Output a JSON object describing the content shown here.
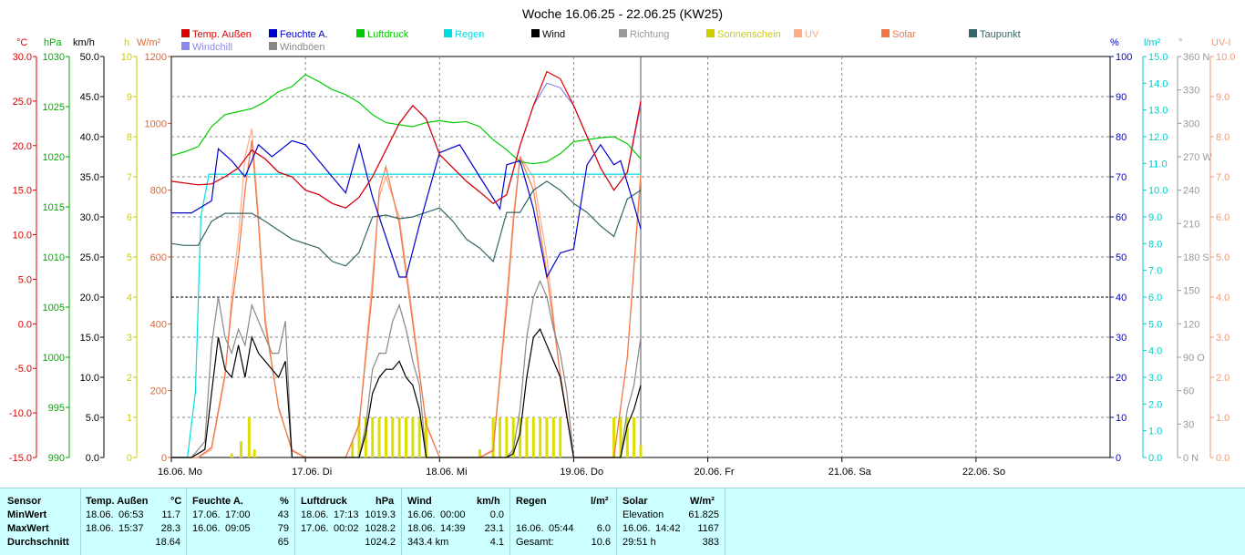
{
  "chart_data": {
    "type": "line",
    "title": "Woche 16.06.25 - 22.06.25 (KW25)",
    "x_labels": [
      "16.06. Mo",
      "17.06. Di",
      "18.06. Mi",
      "19.06. Do",
      "20.06. Fr",
      "21.06. Sa",
      "22.06. So"
    ],
    "legend": [
      {
        "name": "Temp. Außen",
        "color": "#dd0000"
      },
      {
        "name": "Feuchte A.",
        "color": "#0000cc"
      },
      {
        "name": "Luftdruck",
        "color": "#00cc00"
      },
      {
        "name": "Regen",
        "color": "#00dddd"
      },
      {
        "name": "Wind",
        "color": "#000000"
      },
      {
        "name": "Richtung",
        "color": "#999999"
      },
      {
        "name": "Sonnenschein",
        "color": "#cccc00"
      },
      {
        "name": "UV",
        "color": "#ffaa88"
      },
      {
        "name": "Solar",
        "color": "#ee7744"
      },
      {
        "name": "Taupunkt",
        "color": "#336666"
      },
      {
        "name": "Windchill",
        "color": "#8888ee"
      },
      {
        "name": "Windböen",
        "color": "#888888"
      }
    ],
    "axes": {
      "temp": {
        "unit": "°C",
        "color": "#dd0000",
        "ticks": [
          "30.0",
          "25.0",
          "20.0",
          "15.0",
          "10.0",
          "5.0",
          "0.0",
          "-5.0",
          "-10.0",
          "-15.0"
        ]
      },
      "pressure": {
        "unit": "hPa",
        "color": "#00aa00",
        "ticks": [
          "1030",
          "1025",
          "1020",
          "1015",
          "1010",
          "1005",
          "1000",
          "995",
          "990"
        ]
      },
      "wind": {
        "unit": "km/h",
        "color": "#000000",
        "ticks": [
          "50.0",
          "45.0",
          "40.0",
          "35.0",
          "30.0",
          "25.0",
          "20.0",
          "15.0",
          "10.0",
          "5.0",
          "0.0"
        ]
      },
      "sun": {
        "unit": "h",
        "color": "#cccc00",
        "ticks": [
          "10",
          "9",
          "8",
          "7",
          "6",
          "5",
          "4",
          "3",
          "2",
          "1",
          "0"
        ]
      },
      "solar": {
        "unit": "W/m²",
        "color": "#dd6633",
        "ticks": [
          "1200",
          "1000",
          "800",
          "600",
          "400",
          "200",
          "0"
        ]
      },
      "humidity": {
        "unit": "%",
        "color": "#0000cc",
        "ticks": [
          "100",
          "90",
          "80",
          "70",
          "60",
          "50",
          "40",
          "30",
          "20",
          "10",
          "0"
        ]
      },
      "rain": {
        "unit": "l/m²",
        "color": "#00cccc",
        "ticks": [
          "15.0",
          "14.0",
          "13.0",
          "12.0",
          "11.0",
          "10.0",
          "9.0",
          "8.0",
          "7.0",
          "6.0",
          "5.0",
          "4.0",
          "3.0",
          "2.0",
          "1.0",
          "0.0"
        ]
      },
      "direction": {
        "unit": "°",
        "color": "#999999",
        "ticks": [
          "360 N",
          "330",
          "300",
          "270 W",
          "240",
          "210",
          "180 S",
          "150",
          "120",
          "90 O",
          "60",
          "30",
          "0 N"
        ]
      },
      "uv": {
        "unit": "UV-I",
        "color": "#ee9977",
        "ticks": [
          "10.0",
          "9.0",
          "8.0",
          "7.0",
          "6.0",
          "5.0",
          "4.0",
          "3.0",
          "2.0",
          "1.0",
          "0.0"
        ]
      }
    },
    "series": {
      "temp": {
        "x": [
          0,
          0.1,
          0.2,
          0.3,
          0.4,
          0.5,
          0.6,
          0.7,
          0.8,
          0.9,
          1,
          1.1,
          1.2,
          1.3,
          1.4,
          1.5,
          1.6,
          1.7,
          1.8,
          1.9,
          2,
          2.1,
          2.2,
          2.3,
          2.4,
          2.5,
          2.6,
          2.7,
          2.8,
          2.9,
          3,
          3.1,
          3.2,
          3.3,
          3.4,
          3.5
        ],
        "y": [
          16,
          15.8,
          15.6,
          15.7,
          16.5,
          17.5,
          19.5,
          18.5,
          17,
          16.5,
          15,
          14.5,
          13.5,
          13,
          14.2,
          16.5,
          19.5,
          22.5,
          24.5,
          23,
          19,
          17.5,
          16,
          14.8,
          13.5,
          14.5,
          20,
          24.5,
          28.3,
          27.5,
          24.5,
          21,
          17.5,
          15,
          17,
          25
        ]
      },
      "windchill": {
        "x": [
          0,
          0.1,
          0.2,
          0.3,
          0.4,
          0.5,
          0.6,
          0.7,
          0.8,
          0.9,
          1,
          1.1,
          1.2,
          1.3,
          1.4,
          1.5,
          1.6,
          1.7,
          1.8,
          1.9,
          2,
          2.1,
          2.2,
          2.3,
          2.4,
          2.5,
          2.6,
          2.7,
          2.8,
          2.9,
          3,
          3.1,
          3.2,
          3.3,
          3.4,
          3.5
        ],
        "y": [
          16,
          15.8,
          15.6,
          15.7,
          16.5,
          17.5,
          19.5,
          18.5,
          17,
          16.5,
          15,
          14.5,
          13.5,
          13,
          14.2,
          16.5,
          19.5,
          22.5,
          24.5,
          23,
          19,
          17.5,
          16,
          14.8,
          13.5,
          14.5,
          20,
          24.5,
          27,
          26.5,
          24.5,
          21,
          17.5,
          15,
          17,
          24.5
        ]
      },
      "humidity": {
        "x": [
          0,
          0.15,
          0.3,
          0.35,
          0.45,
          0.55,
          0.65,
          0.75,
          0.9,
          1,
          1.15,
          1.3,
          1.4,
          1.5,
          1.6,
          1.7,
          1.75,
          1.85,
          2,
          2.15,
          2.3,
          2.45,
          2.5,
          2.6,
          2.7,
          2.8,
          2.9,
          3,
          3.1,
          3.2,
          3.3,
          3.35,
          3.45,
          3.5
        ],
        "y": [
          61,
          61,
          64,
          77,
          74,
          70,
          78,
          75,
          79,
          78,
          72,
          66,
          78,
          65,
          55,
          45,
          45,
          58,
          76,
          78,
          70,
          62,
          73,
          74,
          62,
          45,
          51,
          52,
          73,
          78,
          73,
          74,
          63,
          57
        ]
      },
      "pressure": {
        "x": [
          0,
          0.1,
          0.2,
          0.3,
          0.4,
          0.5,
          0.6,
          0.7,
          0.8,
          0.9,
          1,
          1.1,
          1.2,
          1.3,
          1.4,
          1.5,
          1.6,
          1.7,
          1.8,
          1.9,
          2,
          2.1,
          2.2,
          2.3,
          2.4,
          2.5,
          2.6,
          2.7,
          2.8,
          2.9,
          3,
          3.1,
          3.2,
          3.3,
          3.4,
          3.5
        ],
        "y": [
          1020.1,
          1020.5,
          1021,
          1023,
          1024.2,
          1024.5,
          1024.8,
          1025.5,
          1026.5,
          1027,
          1028.2,
          1027.5,
          1026.7,
          1026.2,
          1025.4,
          1024.2,
          1023.4,
          1023.2,
          1023,
          1023.4,
          1023.6,
          1023.4,
          1023.5,
          1023,
          1021.7,
          1020.7,
          1019.5,
          1019.3,
          1019.5,
          1020.3,
          1021.5,
          1021.7,
          1021.9,
          1022,
          1021.3,
          1019.8
        ]
      },
      "dewpoint": {
        "x": [
          0,
          0.1,
          0.2,
          0.3,
          0.4,
          0.5,
          0.6,
          0.7,
          0.8,
          0.9,
          1,
          1.1,
          1.2,
          1.3,
          1.4,
          1.5,
          1.6,
          1.7,
          1.8,
          1.9,
          2,
          2.1,
          2.2,
          2.3,
          2.4,
          2.5,
          2.6,
          2.7,
          2.8,
          2.9,
          3,
          3.1,
          3.2,
          3.3,
          3.4,
          3.5
        ],
        "y": [
          9,
          8.8,
          8.8,
          11.5,
          12.4,
          12.4,
          12.4,
          11.5,
          10.5,
          9.5,
          9,
          8.5,
          7,
          6.5,
          8,
          12,
          12.2,
          11.8,
          12,
          12.5,
          13,
          11.5,
          9.5,
          8.5,
          7,
          12.5,
          12.5,
          15,
          16,
          15,
          13.5,
          12.5,
          11,
          9.8,
          14,
          15
        ]
      },
      "rain": {
        "x": [
          0,
          0.12,
          0.18,
          0.22,
          0.28,
          0.33,
          3.5
        ],
        "y": [
          0,
          0,
          2.5,
          9,
          10.6,
          10.6,
          10.6
        ]
      },
      "wind": {
        "x": [
          0,
          0.15,
          0.25,
          0.3,
          0.35,
          0.4,
          0.45,
          0.5,
          0.55,
          0.6,
          0.65,
          0.7,
          0.75,
          0.8,
          0.85,
          0.9,
          0.95,
          1,
          1.1,
          1.2,
          1.3,
          1.4,
          1.45,
          1.5,
          1.55,
          1.6,
          1.65,
          1.7,
          1.75,
          1.8,
          1.85,
          1.9,
          1.95,
          2,
          2.3,
          2.5,
          2.55,
          2.6,
          2.65,
          2.7,
          2.75,
          2.8,
          2.85,
          2.9,
          2.95,
          3,
          3.1,
          3.2,
          3.3,
          3.35,
          3.4,
          3.45,
          3.5
        ],
        "y": [
          0,
          0,
          1,
          8,
          15,
          11,
          10,
          14,
          10,
          15,
          13,
          12,
          11,
          10,
          12,
          0,
          0,
          0,
          0,
          0,
          0,
          0,
          3,
          8,
          10,
          11,
          11,
          12,
          10,
          9,
          6,
          0,
          0,
          0,
          0,
          0,
          0.5,
          3,
          10,
          15,
          16,
          14,
          12,
          10,
          5,
          0,
          0,
          0,
          0,
          0,
          4,
          6,
          9
        ]
      },
      "gust": {
        "x": [
          0,
          0.15,
          0.25,
          0.3,
          0.35,
          0.4,
          0.45,
          0.5,
          0.55,
          0.6,
          0.65,
          0.7,
          0.75,
          0.8,
          0.85,
          0.9,
          0.95,
          1,
          1.1,
          1.2,
          1.3,
          1.4,
          1.45,
          1.5,
          1.55,
          1.6,
          1.65,
          1.7,
          1.75,
          1.8,
          1.85,
          1.9,
          1.95,
          2,
          2.3,
          2.5,
          2.55,
          2.6,
          2.65,
          2.7,
          2.75,
          2.8,
          2.85,
          2.9,
          2.95,
          3,
          3.1,
          3.2,
          3.3,
          3.35,
          3.4,
          3.45,
          3.5
        ],
        "y": [
          0,
          0,
          2,
          14,
          20,
          15,
          13,
          16,
          14,
          19,
          17,
          15,
          13,
          13,
          17,
          0,
          0,
          0,
          0,
          0,
          0,
          0,
          4,
          11,
          13,
          13,
          17,
          19,
          16,
          12,
          9,
          0,
          0,
          0,
          0,
          0,
          1,
          6,
          15,
          20,
          22,
          20,
          16,
          13,
          8,
          0,
          0,
          0,
          0,
          0,
          6,
          9,
          15
        ]
      },
      "solar": {
        "x": [
          0,
          0.1,
          0.2,
          0.3,
          0.4,
          0.45,
          0.5,
          0.55,
          0.6,
          0.65,
          0.7,
          0.8,
          0.9,
          1,
          1.1,
          1.2,
          1.3,
          1.4,
          1.5,
          1.55,
          1.6,
          1.7,
          1.8,
          1.9,
          2,
          2.1,
          2.2,
          2.3,
          2.4,
          2.5,
          2.55,
          2.6,
          2.7,
          2.8,
          2.9,
          3,
          3.1,
          3.2,
          3.3,
          3.4,
          3.5
        ],
        "y": [
          0,
          0,
          0,
          30,
          250,
          450,
          600,
          800,
          950,
          700,
          400,
          150,
          20,
          0,
          0,
          0,
          0,
          100,
          500,
          800,
          870,
          700,
          400,
          100,
          0,
          0,
          0,
          0,
          20,
          450,
          700,
          900,
          800,
          550,
          250,
          0,
          0,
          0,
          0,
          300,
          850
        ]
      },
      "uv": {
        "x": [
          0,
          0.1,
          0.2,
          0.3,
          0.4,
          0.45,
          0.5,
          0.55,
          0.6,
          0.65,
          0.7,
          0.8,
          0.9,
          1,
          1.1,
          1.2,
          1.3,
          1.4,
          1.5,
          1.55,
          1.6,
          1.7,
          1.8,
          1.9,
          2,
          2.1,
          2.2,
          2.3,
          2.4,
          2.5,
          2.55,
          2.6,
          2.7,
          2.8,
          2.9,
          3,
          3.1,
          3.2,
          3.3,
          3.4,
          3.5
        ],
        "y": [
          0,
          0,
          0,
          0.2,
          2,
          4,
          5.5,
          7.5,
          8.2,
          6,
          3.5,
          1.2,
          0.2,
          0,
          0,
          0,
          0,
          0.8,
          4.5,
          6.5,
          7,
          6,
          3.5,
          0.8,
          0,
          0,
          0,
          0,
          0.2,
          4,
          6,
          7.5,
          7,
          5,
          2,
          0,
          0,
          0,
          0,
          2.5,
          7
        ]
      },
      "sunshine": {
        "x": [
          0.45,
          0.52,
          0.58,
          0.62,
          1.35,
          1.4,
          1.45,
          1.5,
          1.55,
          1.6,
          1.65,
          1.7,
          1.75,
          1.8,
          1.85,
          1.9,
          2.3,
          2.4,
          2.45,
          2.5,
          2.55,
          2.6,
          2.65,
          2.7,
          2.75,
          2.8,
          2.85,
          2.9,
          3.3,
          3.35,
          3.4,
          3.45,
          3.5
        ],
        "y": [
          0.1,
          0.4,
          1,
          0.2,
          0.4,
          1,
          1,
          1,
          1,
          1,
          1,
          1,
          1,
          1,
          1,
          1,
          0.2,
          1,
          1,
          1,
          1,
          1,
          1,
          1,
          1,
          1,
          1,
          1,
          1,
          1,
          1,
          1,
          0.3
        ]
      }
    }
  },
  "stats": {
    "headers": {
      "sensor": "Sensor",
      "temp": "Temp. Außen",
      "temp_unit": "°C",
      "hum": "Feuchte A.",
      "hum_unit": "%",
      "press": "Luftdruck",
      "press_unit": "hPa",
      "wind": "Wind",
      "wind_unit": "km/h",
      "rain": "Regen",
      "rain_unit": "l/m²",
      "solar": "Solar",
      "solar_unit": "W/m²"
    },
    "row_labels": {
      "min": "MinWert",
      "max": "MaxWert",
      "avg": "Durchschnitt"
    },
    "temp": {
      "min_date": "18.06.",
      "min_time": "06:53",
      "min_val": "11.7",
      "max_date": "18.06.",
      "max_time": "15:37",
      "max_val": "28.3",
      "avg_val": "18.64"
    },
    "hum": {
      "min_date": "17.06.",
      "min_time": "17:00",
      "min_val": "43",
      "max_date": "16.06.",
      "max_time": "09:05",
      "max_val": "79",
      "avg_val": "65"
    },
    "press": {
      "min_date": "18.06.",
      "min_time": "17:13",
      "min_val": "1019.3",
      "max_date": "17.06.",
      "max_time": "00:02",
      "max_val": "1028.2",
      "avg_val": "1024.2"
    },
    "wind": {
      "min_date": "16.06.",
      "min_time": "00:00",
      "min_val": "0.0",
      "max_date": "18.06.",
      "max_time": "14:39",
      "max_val": "23.1",
      "avg_label": "343.4 km",
      "avg_val": "4.1"
    },
    "rain": {
      "max_date": "16.06.",
      "max_time": "05:44",
      "max_val": "6.0",
      "avg_label": "Gesamt:",
      "avg_val": "10.6"
    },
    "solar": {
      "min_label": "Elevation",
      "min_val": "61.825",
      "max_date": "16.06.",
      "max_time": "14:42",
      "max_val": "1167",
      "avg_label": "29:51 h",
      "avg_val": "383"
    }
  }
}
